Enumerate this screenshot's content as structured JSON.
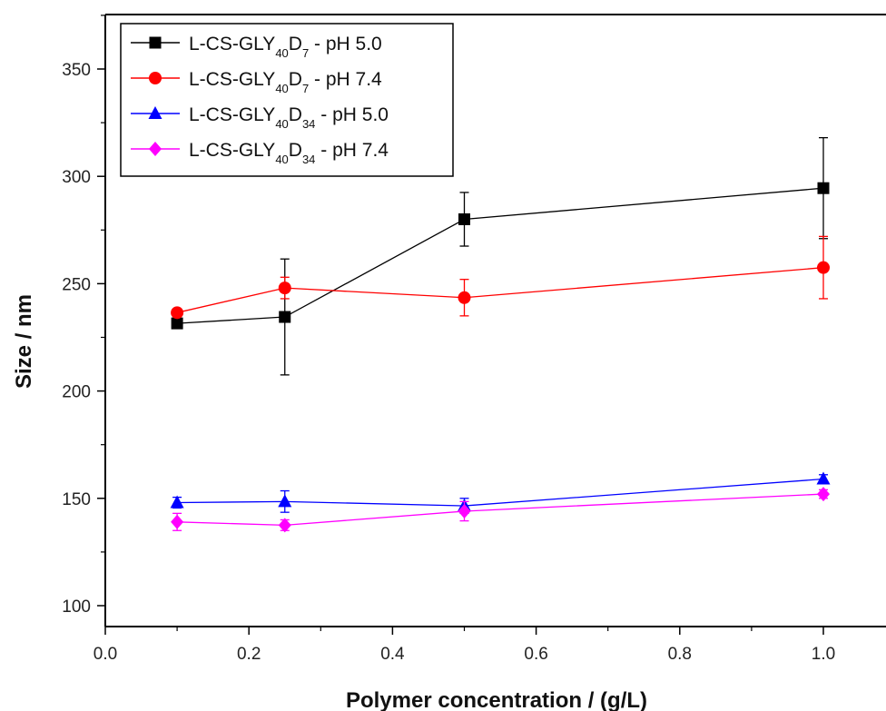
{
  "chart_data": {
    "type": "line",
    "xlabel": "Polymer concentration / (g/L)",
    "ylabel": "Size / nm",
    "xlim": [
      0.0,
      1.05
    ],
    "ylim": [
      95,
      375
    ],
    "x_ticks": [
      "0.0",
      "0.2",
      "0.4",
      "0.6",
      "0.8",
      "1.0"
    ],
    "y_ticks": [
      "100",
      "150",
      "200",
      "250",
      "300",
      "350"
    ],
    "x_tick_values": [
      0.0,
      0.2,
      0.4,
      0.6,
      0.8,
      1.0
    ],
    "y_tick_values": [
      100,
      150,
      200,
      250,
      300,
      350
    ],
    "legend_position": "top-left",
    "grid": false,
    "series": [
      {
        "name_base": "L-CS-GLY",
        "sub1": "40",
        "mid": "D",
        "sub2": "7",
        "suffix": " - pH 5.0",
        "color": "#000000",
        "marker": "square",
        "x": [
          0.1,
          0.25,
          0.5,
          1.0
        ],
        "y": [
          231.5,
          234.5,
          280,
          294.5
        ],
        "err": [
          0,
          27,
          12.5,
          23.5
        ]
      },
      {
        "name_base": "L-CS-GLY",
        "sub1": "40",
        "mid": "D",
        "sub2": "7",
        "suffix": " - pH 7.4",
        "color": "#ff0000",
        "marker": "circle",
        "x": [
          0.1,
          0.25,
          0.5,
          1.0
        ],
        "y": [
          236.5,
          248,
          243.5,
          257.5
        ],
        "err": [
          0,
          5,
          8.5,
          14.5
        ]
      },
      {
        "name_base": "L-CS-GLY",
        "sub1": "40",
        "mid": "D",
        "sub2": "34",
        "suffix": " - pH 5.0",
        "color": "#0000ff",
        "marker": "triangle",
        "x": [
          0.1,
          0.25,
          0.5,
          1.0
        ],
        "y": [
          148,
          148.5,
          146.5,
          159
        ],
        "err": [
          2.5,
          5,
          3.5,
          2
        ]
      },
      {
        "name_base": "L-CS-GLY",
        "sub1": "40",
        "mid": "D",
        "sub2": "34",
        "suffix": " - pH 7.4",
        "color": "#ff00ff",
        "marker": "diamond",
        "x": [
          0.1,
          0.25,
          0.5,
          1.0
        ],
        "y": [
          139,
          137.5,
          144,
          152
        ],
        "err": [
          4,
          2.5,
          4.5,
          2
        ]
      }
    ]
  }
}
